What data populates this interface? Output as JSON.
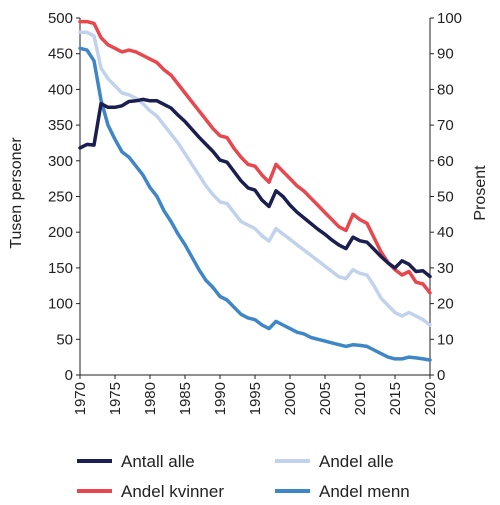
{
  "chart_data": {
    "type": "line",
    "title": "",
    "xlabel": "",
    "ylabel_left": "Tusen personer",
    "ylabel_right": "Prosent",
    "xlim": [
      1970,
      2020
    ],
    "ylim_left": [
      0,
      500
    ],
    "ylim_right": [
      0,
      100
    ],
    "x_ticks": [
      1970,
      1975,
      1980,
      1985,
      1990,
      1995,
      2000,
      2005,
      2010,
      2015,
      2020
    ],
    "y_left_ticks": [
      0,
      50,
      100,
      150,
      200,
      250,
      300,
      350,
      400,
      450,
      500
    ],
    "y_right_ticks": [
      0,
      10,
      20,
      30,
      40,
      50,
      60,
      70,
      80,
      90,
      100
    ],
    "grid": false,
    "legend_position": "bottom",
    "series": [
      {
        "name": "Antall alle",
        "axis": "left",
        "color": "#1b1f4f",
        "x": [
          1970,
          1971,
          1972,
          1973,
          1974,
          1975,
          1976,
          1977,
          1978,
          1979,
          1980,
          1981,
          1982,
          1983,
          1984,
          1985,
          1986,
          1987,
          1988,
          1989,
          1990,
          1991,
          1992,
          1993,
          1994,
          1995,
          1996,
          1997,
          1998,
          1999,
          2000,
          2001,
          2002,
          2003,
          2004,
          2005,
          2006,
          2007,
          2008,
          2009,
          2010,
          2011,
          2012,
          2013,
          2014,
          2015,
          2016,
          2017,
          2018,
          2019,
          2020
        ],
        "y": [
          318,
          323,
          322,
          380,
          375,
          375,
          377,
          383,
          384,
          386,
          384,
          384,
          379,
          374,
          364,
          355,
          344,
          333,
          323,
          313,
          301,
          298,
          285,
          272,
          262,
          259,
          245,
          236,
          258,
          250,
          238,
          228,
          220,
          212,
          204,
          197,
          189,
          182,
          177,
          193,
          188,
          186,
          176,
          166,
          157,
          150,
          160,
          155,
          145,
          146,
          138
        ]
      },
      {
        "name": "Andel kvinner",
        "axis": "right",
        "color": "#e8474d",
        "x": [
          1970,
          1971,
          1972,
          1973,
          1974,
          1975,
          1976,
          1977,
          1978,
          1979,
          1980,
          1981,
          1982,
          1983,
          1984,
          1985,
          1986,
          1987,
          1988,
          1989,
          1990,
          1991,
          1992,
          1993,
          1994,
          1995,
          1996,
          1997,
          1998,
          1999,
          2000,
          2001,
          2002,
          2003,
          2004,
          2005,
          2006,
          2007,
          2008,
          2009,
          2010,
          2011,
          2012,
          2013,
          2014,
          2015,
          2016,
          2017,
          2018,
          2019,
          2020
        ],
        "y": [
          99,
          99,
          98.5,
          94.5,
          92.5,
          91.5,
          90.5,
          91,
          90.5,
          89.5,
          88.5,
          87.5,
          85.5,
          84,
          81.5,
          79,
          76.5,
          74,
          71.5,
          69,
          67,
          66.5,
          63.5,
          61,
          59,
          58.5,
          56,
          54,
          59,
          57,
          55,
          53,
          51.5,
          49.5,
          47.5,
          45.5,
          43.5,
          41.5,
          40.5,
          45,
          43.5,
          42.5,
          38.5,
          34.5,
          31.5,
          29.5,
          28,
          29,
          26,
          25.5,
          23
        ]
      },
      {
        "name": "Andel alle",
        "axis": "right",
        "color": "#c1d3ec",
        "x": [
          1970,
          1971,
          1972,
          1973,
          1974,
          1975,
          1976,
          1977,
          1978,
          1979,
          1980,
          1981,
          1982,
          1983,
          1984,
          1985,
          1986,
          1987,
          1988,
          1989,
          1990,
          1991,
          1992,
          1993,
          1994,
          1995,
          1996,
          1997,
          1998,
          1999,
          2000,
          2001,
          2002,
          2003,
          2004,
          2005,
          2006,
          2007,
          2008,
          2009,
          2010,
          2011,
          2012,
          2013,
          2014,
          2015,
          2016,
          2017,
          2018,
          2019,
          2020
        ],
        "y": [
          96,
          96,
          95,
          86,
          83,
          81,
          79,
          78.5,
          77.5,
          76,
          74,
          72.5,
          70,
          67.5,
          65,
          62,
          59,
          56,
          53,
          50.5,
          48.5,
          48,
          45.5,
          43,
          42,
          41,
          39,
          37.5,
          41,
          39.5,
          38,
          36.5,
          35,
          33.5,
          32,
          30.5,
          29,
          27.5,
          27,
          29.5,
          28.5,
          28,
          25,
          21.5,
          19.5,
          17.5,
          16.5,
          17.5,
          16.5,
          15.5,
          14
        ]
      },
      {
        "name": "Andel menn",
        "axis": "right",
        "color": "#3f86c7",
        "x": [
          1970,
          1971,
          1972,
          1973,
          1974,
          1975,
          1976,
          1977,
          1978,
          1979,
          1980,
          1981,
          1982,
          1983,
          1984,
          1985,
          1986,
          1987,
          1988,
          1989,
          1990,
          1991,
          1992,
          1993,
          1994,
          1995,
          1996,
          1997,
          1998,
          1999,
          2000,
          2001,
          2002,
          2003,
          2004,
          2005,
          2006,
          2007,
          2008,
          2009,
          2010,
          2011,
          2012,
          2013,
          2014,
          2015,
          2016,
          2017,
          2018,
          2019,
          2020
        ],
        "y": [
          91.5,
          91,
          88,
          77,
          70,
          66,
          62.5,
          61,
          58.5,
          56,
          52.5,
          50,
          46,
          43,
          39.5,
          36.5,
          33,
          29.5,
          26.5,
          24.5,
          22,
          21,
          19,
          17,
          16,
          15.5,
          14,
          13,
          15,
          14,
          13,
          12,
          11.5,
          10.5,
          10,
          9.5,
          9,
          8.5,
          8,
          8.5,
          8.3,
          8,
          7,
          6,
          5,
          4.5,
          4.5,
          5,
          4.8,
          4.5,
          4.2
        ]
      }
    ]
  }
}
